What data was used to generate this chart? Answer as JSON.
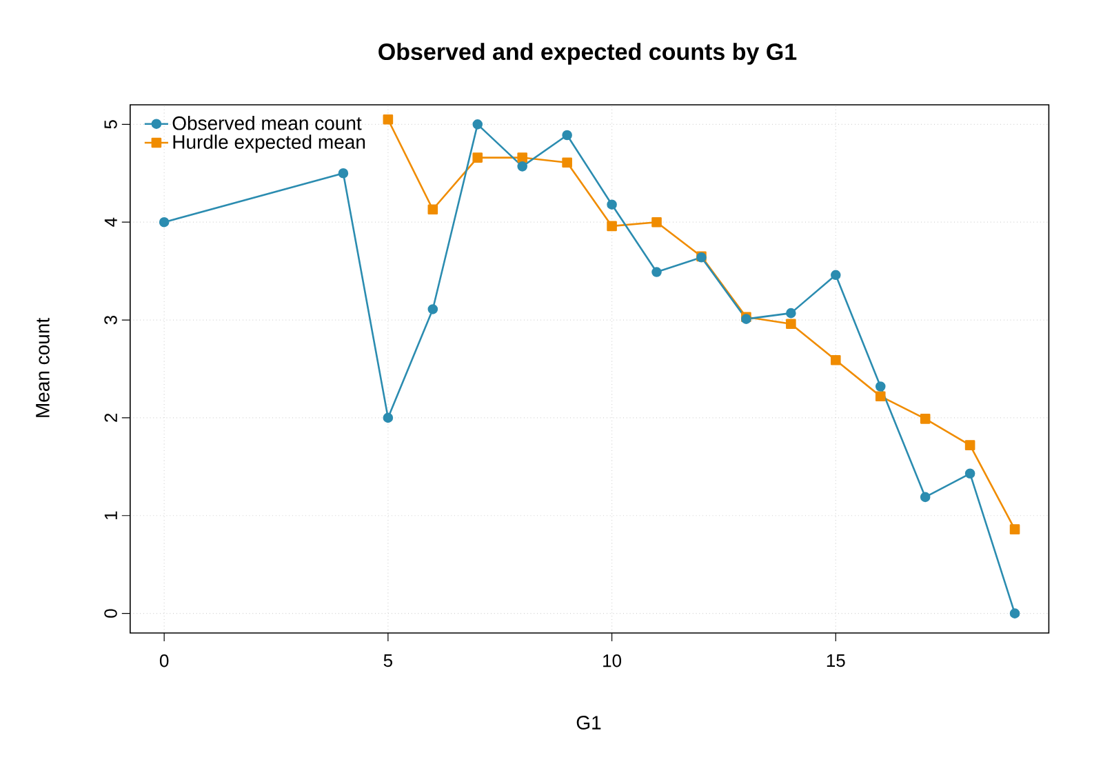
{
  "chart_data": {
    "type": "line",
    "title": "Observed and expected counts by G1",
    "xlabel": "G1",
    "ylabel": "Mean count",
    "x": [
      0,
      4,
      5,
      6,
      7,
      8,
      9,
      10,
      11,
      12,
      13,
      14,
      15,
      16,
      17,
      18,
      19
    ],
    "series": [
      {
        "name": "Observed mean count",
        "color": "#2b8cb0",
        "marker": "circle",
        "values": [
          4.0,
          4.5,
          2.0,
          3.11,
          5.0,
          4.57,
          4.89,
          4.18,
          3.49,
          3.64,
          3.01,
          3.07,
          3.46,
          2.32,
          1.19,
          1.43,
          0.0
        ]
      },
      {
        "name": "Hurdle expected mean",
        "color": "#f08c00",
        "marker": "square",
        "values": [
          null,
          null,
          5.05,
          4.13,
          4.66,
          4.66,
          4.61,
          3.96,
          4.0,
          3.65,
          3.03,
          2.96,
          2.59,
          2.22,
          1.99,
          1.72,
          0.86
        ]
      }
    ],
    "xlim": [
      -0.76,
      19.76
    ],
    "ylim": [
      -0.2,
      5.2
    ],
    "xticks": [
      0,
      5,
      10,
      15
    ],
    "yticks": [
      0,
      1,
      2,
      3,
      4,
      5
    ],
    "grid": true,
    "legend": "top left",
    "line_style": "solid"
  }
}
